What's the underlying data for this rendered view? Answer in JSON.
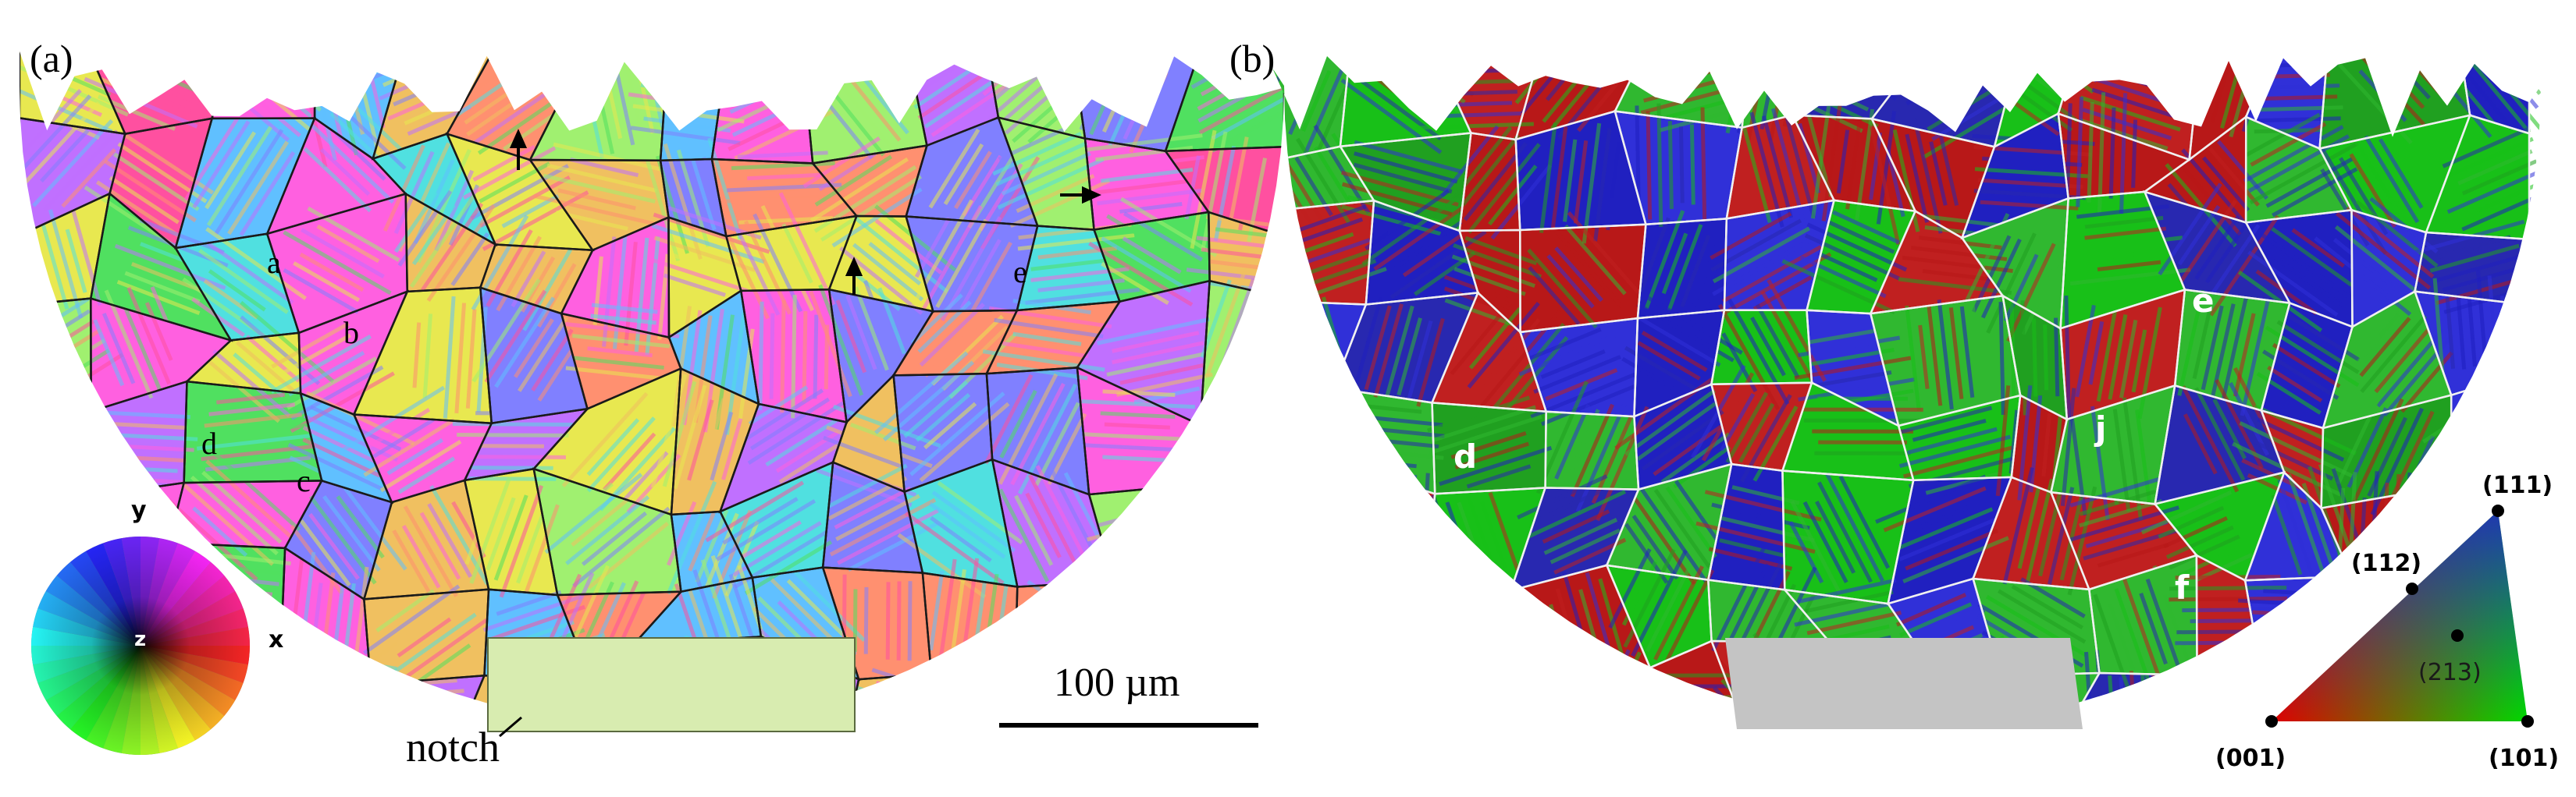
{
  "figure": {
    "panel_a": {
      "panel_label": "(a)",
      "grain_labels": [
        "a",
        "b",
        "c",
        "d",
        "e"
      ],
      "notch_label": "notch",
      "scale_bar_label": "100 µm",
      "color_key": {
        "axis_y": "y",
        "axis_x": "x",
        "axis_z": "z"
      }
    },
    "panel_b": {
      "panel_label": "(b)",
      "grain_labels": [
        "d",
        "e",
        "f",
        "j"
      ],
      "ipf_triangle": {
        "corner_001": "(001)",
        "corner_101": "(101)",
        "corner_111": "(111)",
        "point_112": "(112)",
        "point_213": "(213)",
        "colors": {
          "001": "#e00000",
          "101": "#00d800",
          "111": "#2020d0"
        }
      }
    },
    "colors": {
      "panel_a_boundaries": "#1a1a1a",
      "panel_b_boundaries": "#f0f0f0",
      "notch_b": "#c4c4c4",
      "notch_a": "#d8ecb0"
    }
  }
}
